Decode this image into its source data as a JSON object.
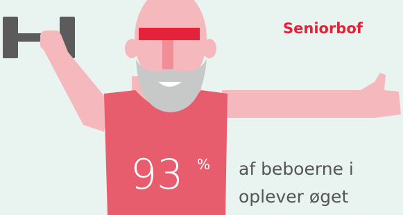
{
  "brand": "Seniorbof",
  "stat": {
    "number": "93",
    "unit": "%"
  },
  "caption": {
    "line1": "af beboerne i",
    "line2": "oplever øget"
  }
}
